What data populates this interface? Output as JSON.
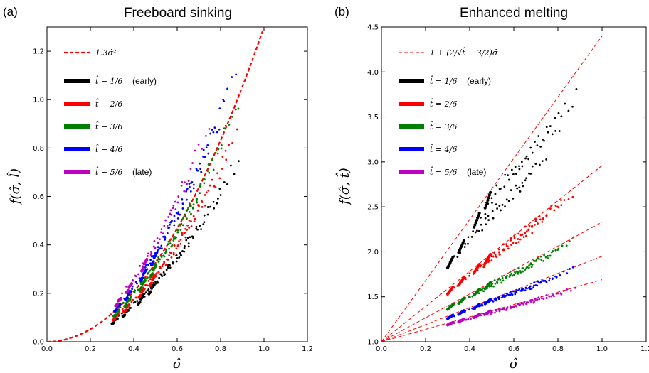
{
  "chart_data": [
    {
      "panel_label": "(a)",
      "type": "scatter",
      "title": "Freeboard sinking",
      "xlabel": "σ̂",
      "ylabel": "f(σ̂, l̂)",
      "xlim": [
        0.0,
        1.2
      ],
      "ylim": [
        0.0,
        1.3
      ],
      "xticks": [
        "0.0",
        "0.2",
        "0.4",
        "0.6",
        "0.8",
        "1.0",
        "1.2"
      ],
      "yticks": [
        "0.0",
        "0.2",
        "0.4",
        "0.6",
        "0.8",
        "1.0",
        "1.2"
      ],
      "grid": false,
      "legend_position": "top-left",
      "reference_curve": {
        "label": "1.3σ̂²",
        "color": "#ff0000",
        "style": "dashed",
        "coefficient": 1.3
      },
      "series": [
        {
          "legend": "t̂ − 1/6",
          "note": "(early)",
          "color": "#000000",
          "factor": 0.77
        },
        {
          "legend": "t̂ − 2/6",
          "note": "",
          "color": "#ff0000",
          "factor": 0.88
        },
        {
          "legend": "t̂ − 3/6",
          "note": "",
          "color": "#008000",
          "factor": 1.0
        },
        {
          "legend": "t̂ − 4/6",
          "note": "",
          "color": "#0000ff",
          "factor": 1.15
        },
        {
          "legend": "t̂ − 5/6",
          "note": "(late)",
          "color": "#bf00bf",
          "factor": 1.3
        }
      ]
    },
    {
      "panel_label": "(b)",
      "type": "scatter",
      "title": "Enhanced melting",
      "xlabel": "σ̂",
      "ylabel": "f(σ̂, t̂)",
      "xlim": [
        0.0,
        1.2
      ],
      "ylim": [
        1.0,
        4.5
      ],
      "xticks": [
        "0.0",
        "0.2",
        "0.4",
        "0.6",
        "0.8",
        "1.0",
        "1.2"
      ],
      "yticks": [
        "1.0",
        "1.5",
        "2.0",
        "2.5",
        "3.0",
        "3.5",
        "4.0",
        "4.5"
      ],
      "grid": false,
      "legend_position": "top-left",
      "reference_curve": {
        "label": "1 + (2/√t̂ − 3/2)σ̂",
        "color": "#ff0000",
        "style": "dashed"
      },
      "series": [
        {
          "legend": "t̂ = 1/6",
          "note": "(early)",
          "color": "#000000",
          "t": 0.1667,
          "slope": 3.4
        },
        {
          "legend": "t̂ = 2/6",
          "note": "",
          "color": "#ff0000",
          "t": 0.3333,
          "slope": 1.96
        },
        {
          "legend": "t̂ = 3/6",
          "note": "",
          "color": "#008000",
          "t": 0.5,
          "slope": 1.33
        },
        {
          "legend": "t̂ = 4/6",
          "note": "",
          "color": "#0000ff",
          "t": 0.6667,
          "slope": 0.95
        },
        {
          "legend": "t̂ = 5/6",
          "note": "(late)",
          "color": "#bf00bf",
          "t": 0.8333,
          "slope": 0.69
        }
      ]
    }
  ]
}
